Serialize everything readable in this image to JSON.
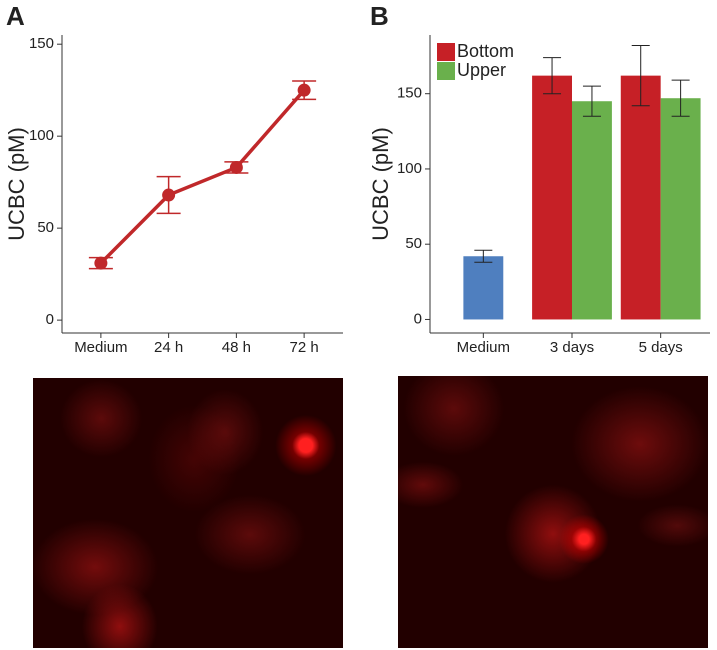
{
  "chart_data": [
    {
      "type": "line",
      "panel_label": "A",
      "y_label": "UCBC (pM)",
      "categories": [
        "Medium",
        "24 h",
        "48 h",
        "72 h"
      ],
      "series": [
        {
          "color": "#c0282a",
          "values": [
            31,
            68,
            83,
            125
          ],
          "errors": [
            3,
            10,
            3,
            5
          ]
        }
      ],
      "ylim": [
        -7,
        155
      ],
      "yticks": [
        0,
        50,
        100,
        150
      ]
    },
    {
      "type": "bar",
      "panel_label": "B",
      "y_label": "UCBC (pM)",
      "categories": [
        "Medium",
        "3 days",
        "5 days"
      ],
      "series": [
        {
          "color": "#4f7fbf",
          "values": [
            42,
            null,
            null
          ],
          "errors": [
            4,
            null,
            null
          ]
        },
        {
          "name": "Bottom",
          "color": "#c62026",
          "values": [
            null,
            162,
            162
          ],
          "errors": [
            null,
            12,
            20
          ]
        },
        {
          "name": "Upper",
          "color": "#6ab04c",
          "values": [
            null,
            145,
            147
          ],
          "errors": [
            null,
            10,
            12
          ]
        }
      ],
      "ylim": [
        -9,
        189
      ],
      "yticks": [
        0,
        50,
        100,
        150
      ]
    }
  ]
}
